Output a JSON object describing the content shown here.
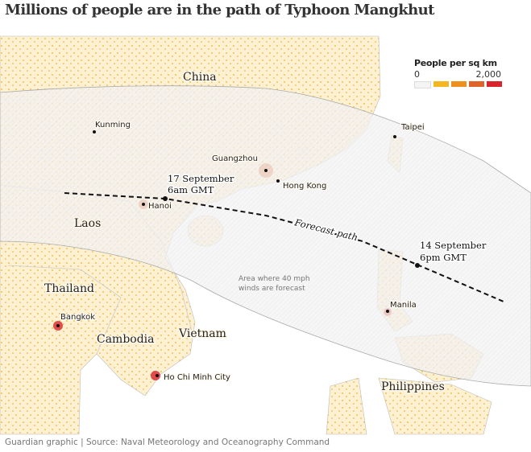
{
  "title": "Millions of people are in the path of Typhoon Mangkhut",
  "legend": {
    "title": "People per sq km",
    "min": "0",
    "max": "2,000",
    "colors": [
      "#f4f4f4",
      "#f5b720",
      "#f0901c",
      "#e0642a",
      "#d8242a"
    ]
  },
  "countries": [
    "China",
    "Laos",
    "Thailand",
    "Cambodia",
    "Vietnam",
    "Philippines"
  ],
  "cities": [
    "Kunming",
    "Guangzhou",
    "Hong Kong",
    "Taipei",
    "Hanoi",
    "Bangkok",
    "Ho Chi Minh City",
    "Manila"
  ],
  "annotations": {
    "start_line1": "14 September",
    "start_line2": "6pm GMT",
    "end_line1": "17 September",
    "end_line2": "6am GMT",
    "path_label": "Forecast path",
    "cone_line1": "Area where 40 mph",
    "cone_line2": "winds are forecast"
  },
  "footer": "Guardian graphic | Source: Naval Meteorology and Oceanography Command"
}
